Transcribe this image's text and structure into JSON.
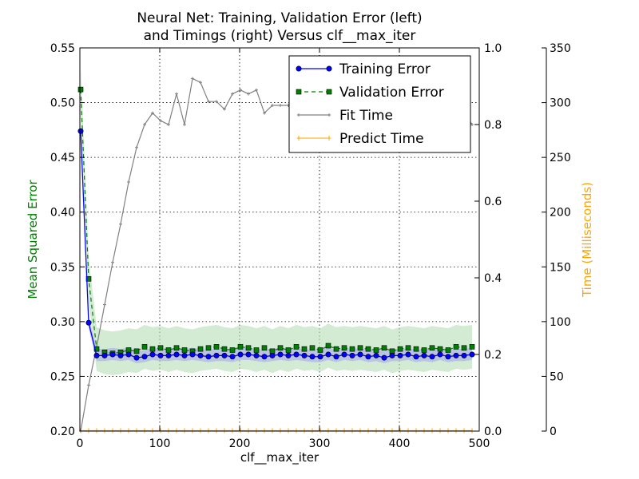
{
  "chart_data": {
    "type": "line",
    "title_line1": "Neural Net: Training, Validation Error (left)",
    "title_line2": "and Timings (right) Versus clf__max_iter",
    "xlabel": "clf__max_iter",
    "ylabel_left": "Mean Squared Error",
    "ylabel_far_right": "Time (Milliseconds)",
    "xlim": [
      0,
      500
    ],
    "ylim_left": [
      0.2,
      0.55
    ],
    "ylim_right": [
      0.0,
      1.0
    ],
    "ylim_far_right": [
      0,
      350
    ],
    "x_ticks": [
      "0",
      "100",
      "200",
      "300",
      "400",
      "500"
    ],
    "y_left_ticks": [
      "0.20",
      "0.25",
      "0.30",
      "0.35",
      "0.40",
      "0.45",
      "0.50",
      "0.55"
    ],
    "y_right_ticks": [
      "0.0",
      "0.2",
      "0.4",
      "0.6",
      "0.8",
      "1.0"
    ],
    "y_far_right_ticks": [
      "0",
      "50",
      "100",
      "150",
      "200",
      "250",
      "300",
      "350"
    ],
    "grid": true,
    "legend_position": "top-right",
    "colors": {
      "training": "#0000ff",
      "validation": "#008000",
      "validation_band": "#b5dcb5",
      "training_band": "#a8a8f0",
      "fit": "#808080",
      "predict": "#ffa500",
      "ylabel_left": "#008000",
      "ylabel_far_right": "#ffa500"
    },
    "series": [
      {
        "name": "Training Error",
        "axis": "left",
        "x": [
          1,
          11,
          21,
          31,
          41,
          51,
          61,
          71,
          81,
          91,
          101,
          111,
          121,
          131,
          141,
          151,
          161,
          171,
          181,
          191,
          201,
          211,
          221,
          231,
          241,
          251,
          261,
          271,
          281,
          291,
          301,
          311,
          321,
          331,
          341,
          351,
          361,
          371,
          381,
          391,
          401,
          411,
          421,
          431,
          441,
          451,
          461,
          471,
          481,
          491
        ],
        "values": [
          0.474,
          0.299,
          0.269,
          0.269,
          0.27,
          0.269,
          0.27,
          0.267,
          0.268,
          0.27,
          0.269,
          0.269,
          0.27,
          0.269,
          0.27,
          0.269,
          0.268,
          0.269,
          0.269,
          0.268,
          0.27,
          0.27,
          0.269,
          0.268,
          0.269,
          0.27,
          0.269,
          0.27,
          0.269,
          0.268,
          0.268,
          0.27,
          0.268,
          0.27,
          0.269,
          0.27,
          0.268,
          0.269,
          0.267,
          0.269,
          0.269,
          0.27,
          0.268,
          0.269,
          0.268,
          0.27,
          0.268,
          0.269,
          0.269,
          0.27
        ],
        "band": [
          0.005,
          0.006
        ]
      },
      {
        "name": "Validation Error",
        "axis": "left",
        "x": [
          1,
          11,
          21,
          31,
          41,
          51,
          61,
          71,
          81,
          91,
          101,
          111,
          121,
          131,
          141,
          151,
          161,
          171,
          181,
          191,
          201,
          211,
          221,
          231,
          241,
          251,
          261,
          271,
          281,
          291,
          301,
          311,
          321,
          331,
          341,
          351,
          361,
          371,
          381,
          391,
          401,
          411,
          421,
          431,
          441,
          451,
          461,
          471,
          481,
          491
        ],
        "values": [
          0.512,
          0.339,
          0.275,
          0.272,
          0.271,
          0.272,
          0.274,
          0.273,
          0.277,
          0.275,
          0.276,
          0.274,
          0.276,
          0.274,
          0.273,
          0.275,
          0.276,
          0.277,
          0.275,
          0.274,
          0.277,
          0.276,
          0.274,
          0.276,
          0.273,
          0.276,
          0.274,
          0.277,
          0.275,
          0.276,
          0.274,
          0.278,
          0.275,
          0.276,
          0.275,
          0.276,
          0.275,
          0.274,
          0.276,
          0.273,
          0.275,
          0.276,
          0.275,
          0.274,
          0.276,
          0.275,
          0.274,
          0.277,
          0.276,
          0.277
        ],
        "band": [
          0.02,
          0.02
        ]
      },
      {
        "name": "Fit Time",
        "axis": "right",
        "x": [
          1,
          11,
          21,
          31,
          41,
          51,
          61,
          71,
          81,
          91,
          101,
          111,
          121,
          131,
          141,
          151,
          161,
          171,
          181,
          191,
          201,
          211,
          221,
          231,
          241,
          251,
          261,
          271,
          281,
          291,
          301,
          311,
          321,
          331,
          341,
          351,
          361,
          371,
          381,
          391,
          401,
          411,
          421,
          431,
          441,
          451,
          461,
          471,
          481,
          491
        ],
        "values": [
          0.0,
          0.12,
          0.22,
          0.33,
          0.44,
          0.54,
          0.65,
          0.74,
          0.8,
          0.83,
          0.81,
          0.8,
          0.88,
          0.8,
          0.92,
          0.91,
          0.86,
          0.86,
          0.84,
          0.88,
          0.89,
          0.88,
          0.89,
          0.83,
          0.85,
          0.85,
          0.85,
          0.86,
          0.94,
          0.88,
          0.84,
          0.86,
          0.87,
          0.84,
          0.86,
          0.85,
          0.84,
          0.85,
          0.86,
          0.82,
          0.86,
          0.85,
          0.82,
          0.87,
          0.82,
          0.86,
          0.81,
          0.88,
          0.83,
          0.8
        ]
      },
      {
        "name": "Predict Time",
        "axis": "far-right",
        "x": [
          1,
          11,
          21,
          31,
          41,
          51,
          61,
          71,
          81,
          91,
          101,
          111,
          121,
          131,
          141,
          151,
          161,
          171,
          181,
          191,
          201,
          211,
          221,
          231,
          241,
          251,
          261,
          271,
          281,
          291,
          301,
          311,
          321,
          331,
          341,
          351,
          361,
          371,
          381,
          391,
          401,
          411,
          421,
          431,
          441,
          451,
          461,
          471,
          481,
          491
        ],
        "values": [
          0.5,
          0.5,
          0.5,
          0.5,
          0.5,
          0.5,
          0.5,
          0.5,
          0.5,
          0.5,
          0.5,
          0.5,
          0.5,
          0.5,
          0.5,
          0.5,
          0.5,
          0.5,
          0.5,
          0.5,
          0.5,
          0.5,
          0.5,
          0.5,
          0.5,
          0.5,
          0.5,
          0.5,
          0.5,
          0.5,
          0.5,
          0.5,
          0.5,
          0.5,
          0.5,
          0.5,
          0.5,
          0.5,
          0.5,
          0.5,
          0.5,
          0.5,
          0.5,
          0.5,
          0.5,
          0.5,
          0.5,
          0.5,
          0.5,
          0.5
        ]
      }
    ]
  }
}
